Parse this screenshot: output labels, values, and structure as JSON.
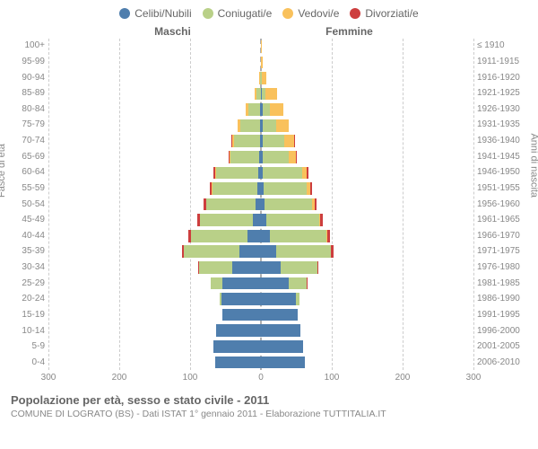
{
  "legend": [
    {
      "label": "Celibi/Nubili",
      "color": "#4f7ead"
    },
    {
      "label": "Coniugati/e",
      "color": "#b9d088"
    },
    {
      "label": "Vedovi/e",
      "color": "#f9c15c"
    },
    {
      "label": "Divorziati/e",
      "color": "#cd3e3e"
    }
  ],
  "header": {
    "male": "Maschi",
    "female": "Femmine"
  },
  "y_left_title": "Fasce di età",
  "y_right_title": "Anni di nascita",
  "x_axis": {
    "max": 300,
    "ticks": [
      300,
      200,
      100,
      0,
      100,
      200,
      300
    ]
  },
  "colors": {
    "celibi": "#4f7ead",
    "coniugati": "#b9d088",
    "vedovi": "#f9c15c",
    "divorziati": "#cd3e3e",
    "grid": "#cccccc",
    "text": "#888888"
  },
  "bars": [
    {
      "age": "100+",
      "birth": "≤ 1910",
      "m": {
        "c": 0,
        "k": 0,
        "v": 0,
        "d": 0
      },
      "f": {
        "c": 0,
        "k": 0,
        "v": 1,
        "d": 0
      }
    },
    {
      "age": "95-99",
      "birth": "1911-1915",
      "m": {
        "c": 0,
        "k": 0,
        "v": 1,
        "d": 0
      },
      "f": {
        "c": 0,
        "k": 0,
        "v": 4,
        "d": 0
      }
    },
    {
      "age": "90-94",
      "birth": "1916-1920",
      "m": {
        "c": 0,
        "k": 2,
        "v": 3,
        "d": 0
      },
      "f": {
        "c": 1,
        "k": 1,
        "v": 14,
        "d": 0
      }
    },
    {
      "age": "85-89",
      "birth": "1921-1925",
      "m": {
        "c": 1,
        "k": 12,
        "v": 6,
        "d": 0
      },
      "f": {
        "c": 3,
        "k": 9,
        "v": 34,
        "d": 0
      }
    },
    {
      "age": "80-84",
      "birth": "1926-1930",
      "m": {
        "c": 2,
        "k": 33,
        "v": 8,
        "d": 0
      },
      "f": {
        "c": 4,
        "k": 22,
        "v": 38,
        "d": 0
      }
    },
    {
      "age": "75-79",
      "birth": "1931-1935",
      "m": {
        "c": 3,
        "k": 56,
        "v": 8,
        "d": 0
      },
      "f": {
        "c": 4,
        "k": 40,
        "v": 34,
        "d": 0
      }
    },
    {
      "age": "70-74",
      "birth": "1936-1940",
      "m": {
        "c": 3,
        "k": 72,
        "v": 7,
        "d": 1
      },
      "f": {
        "c": 4,
        "k": 62,
        "v": 28,
        "d": 2
      }
    },
    {
      "age": "65-69",
      "birth": "1941-1945",
      "m": {
        "c": 5,
        "k": 80,
        "v": 4,
        "d": 2
      },
      "f": {
        "c": 4,
        "k": 74,
        "v": 22,
        "d": 2
      }
    },
    {
      "age": "60-64",
      "birth": "1946-1950",
      "m": {
        "c": 7,
        "k": 120,
        "v": 3,
        "d": 4
      },
      "f": {
        "c": 6,
        "k": 110,
        "v": 14,
        "d": 4
      }
    },
    {
      "age": "55-59",
      "birth": "1951-1955",
      "m": {
        "c": 10,
        "k": 128,
        "v": 2,
        "d": 5
      },
      "f": {
        "c": 7,
        "k": 122,
        "v": 10,
        "d": 5
      }
    },
    {
      "age": "50-54",
      "birth": "1956-1960",
      "m": {
        "c": 14,
        "k": 140,
        "v": 1,
        "d": 6
      },
      "f": {
        "c": 9,
        "k": 136,
        "v": 6,
        "d": 6
      }
    },
    {
      "age": "45-49",
      "birth": "1961-1965",
      "m": {
        "c": 22,
        "k": 150,
        "v": 1,
        "d": 7
      },
      "f": {
        "c": 14,
        "k": 150,
        "v": 3,
        "d": 7
      }
    },
    {
      "age": "40-44",
      "birth": "1966-1970",
      "m": {
        "c": 38,
        "k": 160,
        "v": 0,
        "d": 8
      },
      "f": {
        "c": 26,
        "k": 160,
        "v": 2,
        "d": 8
      }
    },
    {
      "age": "35-39",
      "birth": "1971-1975",
      "m": {
        "c": 62,
        "k": 155,
        "v": 0,
        "d": 6
      },
      "f": {
        "c": 42,
        "k": 155,
        "v": 1,
        "d": 6
      }
    },
    {
      "age": "30-34",
      "birth": "1976-1980",
      "m": {
        "c": 82,
        "k": 92,
        "v": 0,
        "d": 3
      },
      "f": {
        "c": 55,
        "k": 105,
        "v": 0,
        "d": 3
      }
    },
    {
      "age": "25-29",
      "birth": "1981-1985",
      "m": {
        "c": 108,
        "k": 34,
        "v": 0,
        "d": 1
      },
      "f": {
        "c": 78,
        "k": 52,
        "v": 0,
        "d": 1
      }
    },
    {
      "age": "20-24",
      "birth": "1986-1990",
      "m": {
        "c": 112,
        "k": 4,
        "v": 0,
        "d": 0
      },
      "f": {
        "c": 98,
        "k": 10,
        "v": 0,
        "d": 0
      }
    },
    {
      "age": "15-19",
      "birth": "1991-1995",
      "m": {
        "c": 110,
        "k": 0,
        "v": 0,
        "d": 0
      },
      "f": {
        "c": 104,
        "k": 0,
        "v": 0,
        "d": 0
      }
    },
    {
      "age": "10-14",
      "birth": "1996-2000",
      "m": {
        "c": 126,
        "k": 0,
        "v": 0,
        "d": 0
      },
      "f": {
        "c": 112,
        "k": 0,
        "v": 0,
        "d": 0
      }
    },
    {
      "age": "5-9",
      "birth": "2001-2005",
      "m": {
        "c": 134,
        "k": 0,
        "v": 0,
        "d": 0
      },
      "f": {
        "c": 120,
        "k": 0,
        "v": 0,
        "d": 0
      }
    },
    {
      "age": "0-4",
      "birth": "2006-2010",
      "m": {
        "c": 130,
        "k": 0,
        "v": 0,
        "d": 0
      },
      "f": {
        "c": 124,
        "k": 0,
        "v": 0,
        "d": 0
      }
    }
  ],
  "title": "Popolazione per età, sesso e stato civile - 2011",
  "subtitle": "COMUNE DI LOGRATO (BS) - Dati ISTAT 1° gennaio 2011 - Elaborazione TUTTITALIA.IT"
}
